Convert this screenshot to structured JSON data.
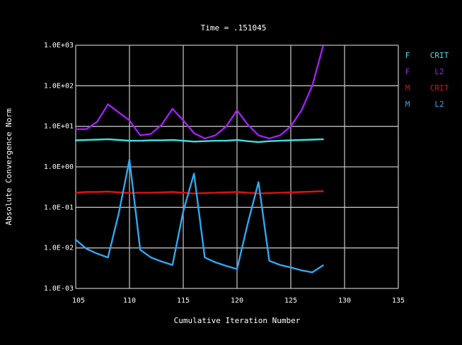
{
  "chart_data": {
    "type": "line",
    "title": "Time = .151045",
    "xlabel": "Cumulative Iteration Number",
    "ylabel": "Absolute Convergence Norm",
    "xlim": [
      105,
      135
    ],
    "ylim": [
      0.001,
      1000
    ],
    "yscale": "log",
    "grid": true,
    "x_ticks": [
      105,
      110,
      115,
      120,
      125,
      130,
      135
    ],
    "x_tick_labels": [
      "105",
      "110",
      "115",
      "120",
      "125",
      "130",
      "135"
    ],
    "y_ticks": [
      0.001,
      0.01,
      0.1,
      1,
      10,
      100,
      1000
    ],
    "y_tick_labels": [
      "1.0E-03",
      "1.0E-02",
      "1.0E-01",
      "1.0E+00",
      "1.0E+01",
      "1.0E+02",
      "1.0E+03"
    ],
    "legend_position": "right",
    "colors": {
      "background": "#000000",
      "grid": "#bdbdbd",
      "text": "#ffffff"
    },
    "x": [
      105,
      106,
      107,
      108,
      109,
      110,
      111,
      112,
      113,
      114,
      115,
      116,
      117,
      118,
      119,
      120,
      121,
      122,
      123,
      124,
      125,
      126,
      127,
      128
    ],
    "series": [
      {
        "name_left": "F",
        "name_right": "CRIT",
        "color": "#40e0e0",
        "values": [
          4.5,
          4.6,
          4.7,
          4.8,
          4.6,
          4.4,
          4.4,
          4.5,
          4.5,
          4.6,
          4.4,
          4.2,
          4.3,
          4.4,
          4.4,
          4.6,
          4.3,
          4.1,
          4.3,
          4.4,
          4.5,
          4.6,
          4.7,
          4.8
        ]
      },
      {
        "name_left": "F",
        "name_right": "L2",
        "color": "#a020f0",
        "values": [
          8.5,
          8.5,
          13,
          35,
          22,
          14,
          6,
          6.5,
          11,
          27,
          14,
          6.8,
          5,
          6,
          10,
          25,
          11,
          6,
          5,
          6,
          10,
          25,
          100,
          950
        ]
      },
      {
        "name_left": "M",
        "name_right": "CRIT",
        "color": "#e01010",
        "values": [
          0.23,
          0.24,
          0.24,
          0.245,
          0.235,
          0.225,
          0.23,
          0.23,
          0.235,
          0.24,
          0.23,
          0.22,
          0.225,
          0.23,
          0.235,
          0.24,
          0.23,
          0.22,
          0.225,
          0.23,
          0.235,
          0.24,
          0.245,
          0.25
        ]
      },
      {
        "name_left": "M",
        "name_right": "L2",
        "color": "#30a8f0",
        "values": [
          0.016,
          0.0095,
          0.0072,
          0.0058,
          0.07,
          1.5,
          0.009,
          0.0058,
          0.0046,
          0.0038,
          0.08,
          0.68,
          0.0058,
          0.0044,
          0.0036,
          0.003,
          0.04,
          0.42,
          0.0048,
          0.0038,
          0.0033,
          0.0028,
          0.0025,
          0.0037
        ]
      }
    ]
  }
}
